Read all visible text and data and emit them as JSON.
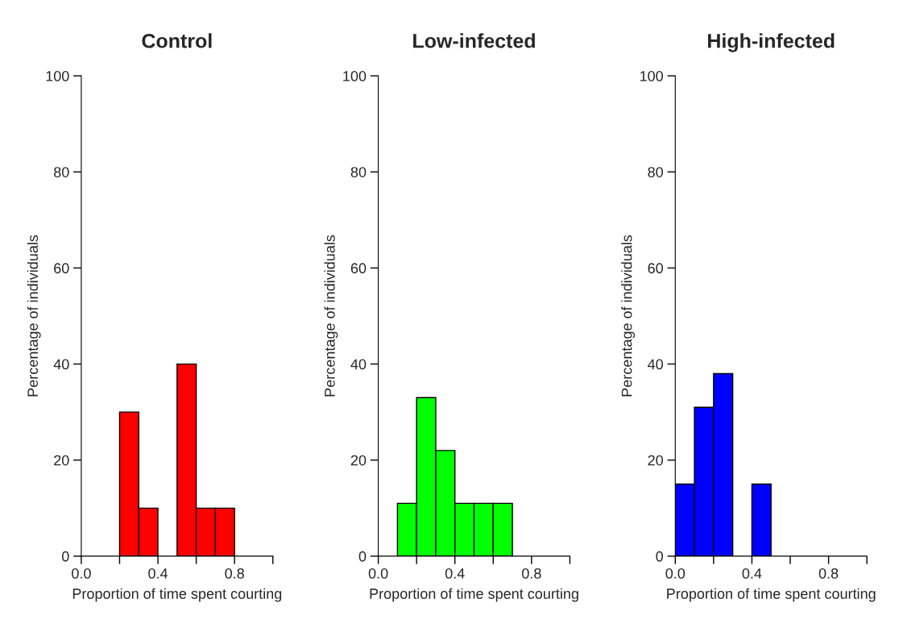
{
  "chart_data": [
    {
      "type": "histogram",
      "title": "Control",
      "xlabel": "Proportion of time spent courting",
      "ylabel": "Percentage of individuals",
      "bins": [
        0.2,
        0.3,
        0.4,
        0.5,
        0.6,
        0.7,
        0.8
      ],
      "values": [
        30,
        10,
        0,
        40,
        10,
        10
      ],
      "color": "#ff0000",
      "xlim": [
        0,
        1
      ],
      "xticks": [
        {
          "value": 0,
          "label": "0.0"
        },
        {
          "value": 0.2,
          "label": null
        },
        {
          "value": 0.4,
          "label": "0.4"
        },
        {
          "value": 0.6,
          "label": null
        },
        {
          "value": 0.8,
          "label": "0.8"
        },
        {
          "value": 1,
          "label": null
        }
      ],
      "ylim": [
        0,
        100
      ],
      "yticks": [
        0,
        20,
        40,
        60,
        80,
        100
      ],
      "grid": false
    },
    {
      "type": "histogram",
      "title": "Low-infected",
      "xlabel": "Proportion of time spent courting",
      "ylabel": "Percentage of individuals",
      "bins": [
        0.1,
        0.2,
        0.3,
        0.4,
        0.5,
        0.6,
        0.7
      ],
      "values": [
        11,
        33,
        22,
        11,
        11,
        11
      ],
      "color": "#00ff00",
      "xlim": [
        0,
        1
      ],
      "xticks": [
        {
          "value": 0,
          "label": "0.0"
        },
        {
          "value": 0.2,
          "label": null
        },
        {
          "value": 0.4,
          "label": "0.4"
        },
        {
          "value": 0.6,
          "label": null
        },
        {
          "value": 0.8,
          "label": "0.8"
        },
        {
          "value": 1,
          "label": null
        }
      ],
      "ylim": [
        0,
        100
      ],
      "yticks": [
        0,
        20,
        40,
        60,
        80,
        100
      ],
      "grid": false
    },
    {
      "type": "histogram",
      "title": "High-infected",
      "xlabel": "Proportion of time spent courting",
      "ylabel": "Percentage of individuals",
      "bins": [
        0.0,
        0.1,
        0.2,
        0.3,
        0.4,
        0.5
      ],
      "values": [
        15,
        31,
        38,
        0,
        15
      ],
      "color": "#0000ff",
      "xlim": [
        0,
        1
      ],
      "xticks": [
        {
          "value": 0,
          "label": "0.0"
        },
        {
          "value": 0.2,
          "label": null
        },
        {
          "value": 0.4,
          "label": "0.4"
        },
        {
          "value": 0.6,
          "label": null
        },
        {
          "value": 0.8,
          "label": "0.8"
        },
        {
          "value": 1,
          "label": null
        }
      ],
      "ylim": [
        0,
        100
      ],
      "yticks": [
        0,
        20,
        40,
        60,
        80,
        100
      ],
      "grid": false
    }
  ]
}
